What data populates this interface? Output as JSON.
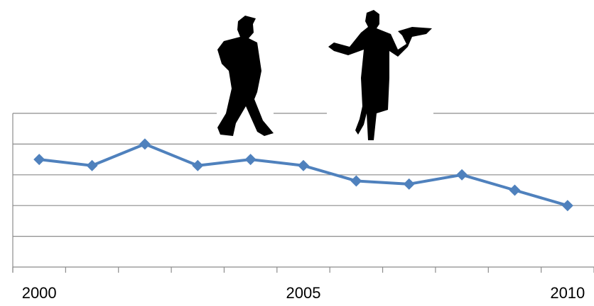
{
  "chart_data": {
    "type": "line",
    "categories": [
      "2000",
      null,
      null,
      null,
      null,
      "2005",
      null,
      null,
      null,
      null,
      "2010"
    ],
    "series": [
      {
        "name": null,
        "color": "#4f81bd",
        "values": [
          3.5,
          3.3,
          4.0,
          3.3,
          3.5,
          3.3,
          2.8,
          2.7,
          3.0,
          2.5,
          2.0
        ]
      }
    ],
    "ylim": [
      0,
      5
    ],
    "yticks": [
      0,
      1,
      2,
      3,
      4,
      5
    ],
    "grid": true
  }
}
